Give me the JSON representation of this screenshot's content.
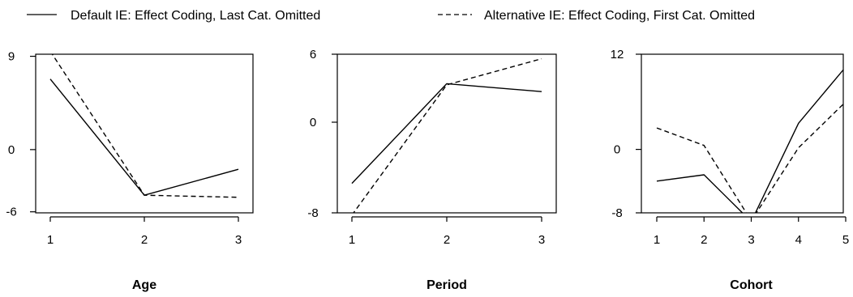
{
  "legend": [
    {
      "label": "Default IE: Effect Coding, Last Cat. Omitted",
      "style": "solid"
    },
    {
      "label": "Alternative IE: Effect Coding, First Cat. Omitted",
      "style": "dashed"
    }
  ],
  "colors": {
    "line": "#000000",
    "background": "#ffffff"
  },
  "chart_data": [
    {
      "type": "line",
      "xlabel": "Age",
      "categories": [
        1,
        2,
        3
      ],
      "ylim": [
        -6.1,
        9.2
      ],
      "yticks": [
        "9",
        "0",
        "-6"
      ],
      "ytick_values": [
        9,
        0,
        -6
      ],
      "series": [
        {
          "name": "Default IE: Effect Coding, Last Cat. Omitted",
          "style": "solid",
          "values": [
            6.8,
            -4.4,
            -1.9
          ]
        },
        {
          "name": "Alternative IE: Effect Coding, First Cat. Omitted",
          "style": "dashed",
          "values": [
            9.5,
            -4.4,
            -4.6
          ]
        }
      ]
    },
    {
      "type": "line",
      "xlabel": "Period",
      "categories": [
        1,
        2,
        3
      ],
      "ylim": [
        -8,
        6
      ],
      "yticks": [
        "6",
        "0",
        "-8"
      ],
      "ytick_values": [
        6,
        0,
        -8
      ],
      "series": [
        {
          "name": "Default IE: Effect Coding, Last Cat. Omitted",
          "style": "solid",
          "values": [
            -5.4,
            3.4,
            2.7
          ]
        },
        {
          "name": "Alternative IE: Effect Coding, First Cat. Omitted",
          "style": "dashed",
          "values": [
            -8.2,
            3.3,
            5.6
          ]
        }
      ]
    },
    {
      "type": "line",
      "xlabel": "Cohort",
      "categories": [
        1,
        2,
        3,
        4,
        5
      ],
      "ylim": [
        -8,
        12
      ],
      "yticks": [
        "12",
        "0",
        "-8"
      ],
      "ytick_values": [
        12,
        0,
        -8
      ],
      "series": [
        {
          "name": "Default IE: Effect Coding, Last Cat. Omitted",
          "style": "solid",
          "values": [
            -4.0,
            -3.2,
            -9.1,
            3.3,
            10.4
          ]
        },
        {
          "name": "Alternative IE: Effect Coding, First Cat. Omitted",
          "style": "dashed",
          "values": [
            2.7,
            0.5,
            -9.0,
            0.2,
            6.0
          ]
        }
      ]
    }
  ]
}
